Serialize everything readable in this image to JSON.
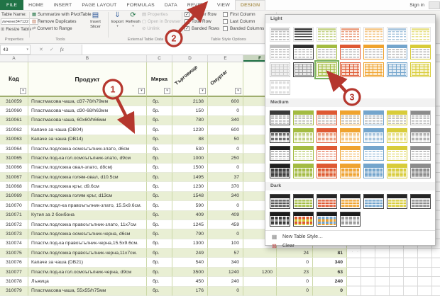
{
  "app": {
    "tabs": [
      "FILE",
      "HOME",
      "INSERT",
      "PAGE LAYOUT",
      "FORMULAS",
      "DATA",
      "REVIEW",
      "VIEW",
      "DESIGN"
    ],
    "active_tab": "DESIGN",
    "sign_in": "Sign in"
  },
  "icons": {
    "cancel": "✕",
    "enter": "✓",
    "fx": "fx",
    "dropdown": "▾",
    "filter": "▾",
    "pivot": "▦",
    "remove_duplicates": "▥",
    "convert": "⇄",
    "slicer": "▤",
    "export": "⇓",
    "refresh": "⟳",
    "properties": "▤",
    "open_browser": "▢",
    "unlink": "⊘",
    "resize": "⊞",
    "new_style": "▦",
    "clear": "⊠",
    "grip": "· · · ·"
  },
  "ribbon": {
    "properties_group": {
      "label": "Properties",
      "table_name_label": "Table Name:",
      "table_name_value": "личене347122",
      "resize_table": "Resize Table"
    },
    "tools_group": {
      "label": "Tools",
      "items": [
        "Summarize with PivotTable",
        "Remove Duplicates",
        "Convert to Range"
      ],
      "insert_slicer": "Insert Slicer"
    },
    "external_group": {
      "label": "External Table Data",
      "export": "Export",
      "refresh": "Refresh",
      "disabled_items": [
        "Properties",
        "Open in Browser",
        "Unlink"
      ]
    },
    "style_options_group": {
      "label": "Table Style Options",
      "checkboxes": [
        {
          "label": "Header Row",
          "checked": true
        },
        {
          "label": "Total Row",
          "checked": false
        },
        {
          "label": "Banded Rows",
          "checked": true
        },
        {
          "label": "First Column",
          "checked": false
        },
        {
          "label": "Last Column",
          "checked": false
        },
        {
          "label": "Banded Columns",
          "checked": false
        }
      ]
    }
  },
  "formula_bar": {
    "name_box": "43",
    "formula_value": ""
  },
  "sheet": {
    "column_letters": [
      "A",
      "B",
      "C",
      "D",
      "E",
      "F"
    ],
    "selected_column": "F",
    "headers": {
      "code": "Код",
      "product": "Продукт",
      "unit": "Мярка",
      "diag1": "Търговище",
      "diag2": "Омуртаг"
    },
    "rows": [
      {
        "code": "310059",
        "product": "Пластмасова чаша, d37-78/h79мм",
        "unit": "бр.",
        "d": "2138",
        "e": "600",
        "f": "",
        "g": "",
        "h": ""
      },
      {
        "code": "310060",
        "product": "Пластмасова чаша, d30-68/h63мм",
        "unit": "бр.",
        "d": "150",
        "e": "0",
        "f": "",
        "g": "",
        "h": ""
      },
      {
        "code": "310061",
        "product": "Пластмасова чаша, 60x60/h66мм",
        "unit": "бр.",
        "d": "780",
        "e": "340",
        "f": "",
        "g": "",
        "h": ""
      },
      {
        "code": "310062",
        "product": "Капаче за чаша (DB04)",
        "unit": "бр.",
        "d": "1230",
        "e": "600",
        "f": "",
        "g": "",
        "h": ""
      },
      {
        "code": "310063",
        "product": "Капаче за чаша (DB14)",
        "unit": "бр.",
        "d": "88",
        "e": "50",
        "f": "",
        "g": "",
        "h": ""
      },
      {
        "code": "310064",
        "product": "Пластм.подложка осмоъгълник-злато, d6см",
        "unit": "бр.",
        "d": "530",
        "e": "0",
        "f": "",
        "g": "",
        "h": ""
      },
      {
        "code": "310065",
        "product": "Пластм.под-ка гол.осмоъгълник-злато, d9см",
        "unit": "бр.",
        "d": "1000",
        "e": "250",
        "f": "",
        "g": "",
        "h": ""
      },
      {
        "code": "310066",
        "product": "Пластм.подложка овал-злато, d8см)",
        "unit": "бр.",
        "d": "1500",
        "e": "0",
        "f": "",
        "g": "",
        "h": ""
      },
      {
        "code": "310067",
        "product": "Пластм.подложка голям-овал, d10.5см",
        "unit": "бр.",
        "d": "1495",
        "e": "37",
        "f": "",
        "g": "",
        "h": ""
      },
      {
        "code": "310068",
        "product": "Пластм.подложка кръг, d9.6см",
        "unit": "бр.",
        "d": "1230",
        "e": "370",
        "f": "",
        "g": "",
        "h": ""
      },
      {
        "code": "310069",
        "product": "Пластм.подложка голям кръг, d13см",
        "unit": "бр.",
        "d": "1548",
        "e": "340",
        "f": "",
        "g": "",
        "h": ""
      },
      {
        "code": "310070",
        "product": "Пластм.подл-ка правоъгълник-злато, 15.5x9.6см.",
        "unit": "бр.",
        "d": "590",
        "e": "0",
        "f": "",
        "g": "",
        "h": ""
      },
      {
        "code": "310071",
        "product": "Кутия за 2 бонбона",
        "unit": "бр.",
        "d": "409",
        "e": "409",
        "f": "",
        "g": "",
        "h": ""
      },
      {
        "code": "310072",
        "product": "Пластм.подложка правоъгълник-злато, 11x7см",
        "unit": "бр.",
        "d": "1245",
        "e": "459",
        "f": "",
        "g": "",
        "h": ""
      },
      {
        "code": "310073",
        "product": "Пластм.подложка осмоъгълник-черна, d6см",
        "unit": "бр.",
        "d": "790",
        "e": "0",
        "f": "",
        "g": "",
        "h": ""
      },
      {
        "code": "310074",
        "product": "Пластм.под-ка правоъгълник-черна,15.5x9.6см.",
        "unit": "бр.",
        "d": "1300",
        "e": "100",
        "f": "",
        "g": "",
        "h": ""
      },
      {
        "code": "310075",
        "product": "Пластм.подложка правоъгълник-черна,11x7см.",
        "unit": "бр.",
        "d": "249",
        "e": "57",
        "f": "",
        "g": "24",
        "h": "81"
      },
      {
        "code": "310076",
        "product": "Капаче за чаша (DB21)",
        "unit": "бр.",
        "d": "540",
        "e": "340",
        "f": "",
        "g": "0",
        "h": "340"
      },
      {
        "code": "310077",
        "product": "Пластм.под-ка гол.осмоъгълник-черна, d9см",
        "unit": "бр.",
        "d": "3500",
        "e": "1240",
        "f": "1200",
        "g": "23",
        "h": "63"
      },
      {
        "code": "310078",
        "product": "Лъжица",
        "unit": "бр.",
        "d": "450",
        "e": "240",
        "f": "",
        "g": "0",
        "h": "240"
      },
      {
        "code": "310079",
        "product": "Пластмасова чаша, 55x55/h75мм",
        "unit": "бр.",
        "d": "176",
        "e": "0",
        "f": "",
        "g": "0",
        "h": "0"
      }
    ]
  },
  "gallery": {
    "palette": {
      "accents": [
        "#c9c9c9",
        "#404040",
        "#a3bb42",
        "#de5933",
        "#efa32f",
        "#74a5cc",
        "#d8cc3a",
        "#8c8c8c"
      ],
      "mids": [
        "#b5b5b5",
        "#6e6e6e",
        "#c5d389",
        "#eba081",
        "#f5c98c",
        "#a9c6de",
        "#e8e18a",
        "#b3b3b3"
      ],
      "tints": [
        "#efefef",
        "#dcdcdc",
        "#e9efcf",
        "#f9ded2",
        "#fceacc",
        "#e2ecf4",
        "#f7f3cb",
        "#e7e7e7"
      ]
    },
    "sections": [
      {
        "name": "Light",
        "thumbs": [
          {
            "v": "dash",
            "c": 0
          },
          {
            "v": "dash",
            "c": 1
          },
          {
            "v": "dash",
            "c": 2
          },
          {
            "v": "dash",
            "c": 3
          },
          {
            "v": "dash",
            "c": 4
          },
          {
            "v": "dash",
            "c": 5
          },
          {
            "v": "dash",
            "c": 6
          },
          {
            "v": "hdr",
            "c": 0
          },
          {
            "v": "hdr",
            "c": 1
          },
          {
            "v": "hdr",
            "c": 2
          },
          {
            "v": "hdr",
            "c": 3
          },
          {
            "v": "hdr",
            "c": 4
          },
          {
            "v": "hdr",
            "c": 5
          },
          {
            "v": "hdr",
            "c": 6
          },
          {
            "v": "grid",
            "c": 0
          },
          {
            "v": "grid",
            "c": 1
          },
          {
            "v": "grid",
            "c": 2
          },
          {
            "v": "grid",
            "c": 3
          },
          {
            "v": "grid",
            "c": 4
          },
          {
            "v": "grid",
            "c": 5
          },
          {
            "v": "grid",
            "c": 6
          },
          {
            "v": "band",
            "c": 0
          }
        ]
      },
      {
        "name": "Medium",
        "thumbs": [
          {
            "v": "mhdr",
            "c": 1
          },
          {
            "v": "mhdr",
            "c": 2
          },
          {
            "v": "mhdr",
            "c": 3
          },
          {
            "v": "mhdr",
            "c": 4
          },
          {
            "v": "mhdr",
            "c": 5
          },
          {
            "v": "mhdr",
            "c": 6
          },
          {
            "v": "mhdr",
            "c": 7
          },
          {
            "v": "mband",
            "c": 1
          },
          {
            "v": "mband",
            "c": 2
          },
          {
            "v": "mband",
            "c": 3
          },
          {
            "v": "mband",
            "c": 4
          },
          {
            "v": "mband",
            "c": 5
          },
          {
            "v": "mband",
            "c": 6
          },
          {
            "v": "mband",
            "c": 7
          },
          {
            "v": "mlines",
            "c": 1
          },
          {
            "v": "mlines",
            "c": 2
          },
          {
            "v": "mlines",
            "c": 3
          },
          {
            "v": "mlines",
            "c": 4
          },
          {
            "v": "mlines",
            "c": 5
          },
          {
            "v": "mlines",
            "c": 6
          },
          {
            "v": "mlines",
            "c": 7
          },
          {
            "v": "msolid",
            "c": 1
          },
          {
            "v": "msolid",
            "c": 2
          },
          {
            "v": "msolid",
            "c": 3
          },
          {
            "v": "msolid",
            "c": 4
          },
          {
            "v": "msolid",
            "c": 5
          },
          {
            "v": "msolid",
            "c": 6
          },
          {
            "v": "msolid",
            "c": 7
          }
        ]
      },
      {
        "name": "Dark",
        "thumbs": [
          {
            "v": "dsolid",
            "c": 1
          },
          {
            "v": "dsolid",
            "c": 2
          },
          {
            "v": "dsolid",
            "c": 3
          },
          {
            "v": "dsolid",
            "c": 4
          },
          {
            "v": "dsolid",
            "c": 5
          },
          {
            "v": "dsolid",
            "c": 6
          },
          {
            "v": "dsolid",
            "c": 7
          },
          {
            "v": "dduo",
            "c": 1
          },
          {
            "v": "dduo",
            "c": 3
          },
          {
            "v": "dduo",
            "c": 5
          },
          {
            "v": "dduo",
            "c": 7
          }
        ]
      }
    ],
    "selected": {
      "section": 0,
      "index": 16
    },
    "menu_items": [
      "New Table Style…",
      "Clear"
    ]
  },
  "annotations": {
    "callouts": [
      "1",
      "2",
      "3"
    ]
  },
  "colors": {
    "excel_green": "#217346",
    "contextual_tab_text": "#8f6f18",
    "annotation_red": "#b5372e",
    "band_green": "#e9efd4",
    "header_border": "#9fae6e",
    "selected_style_outline": "#76b05c"
  }
}
